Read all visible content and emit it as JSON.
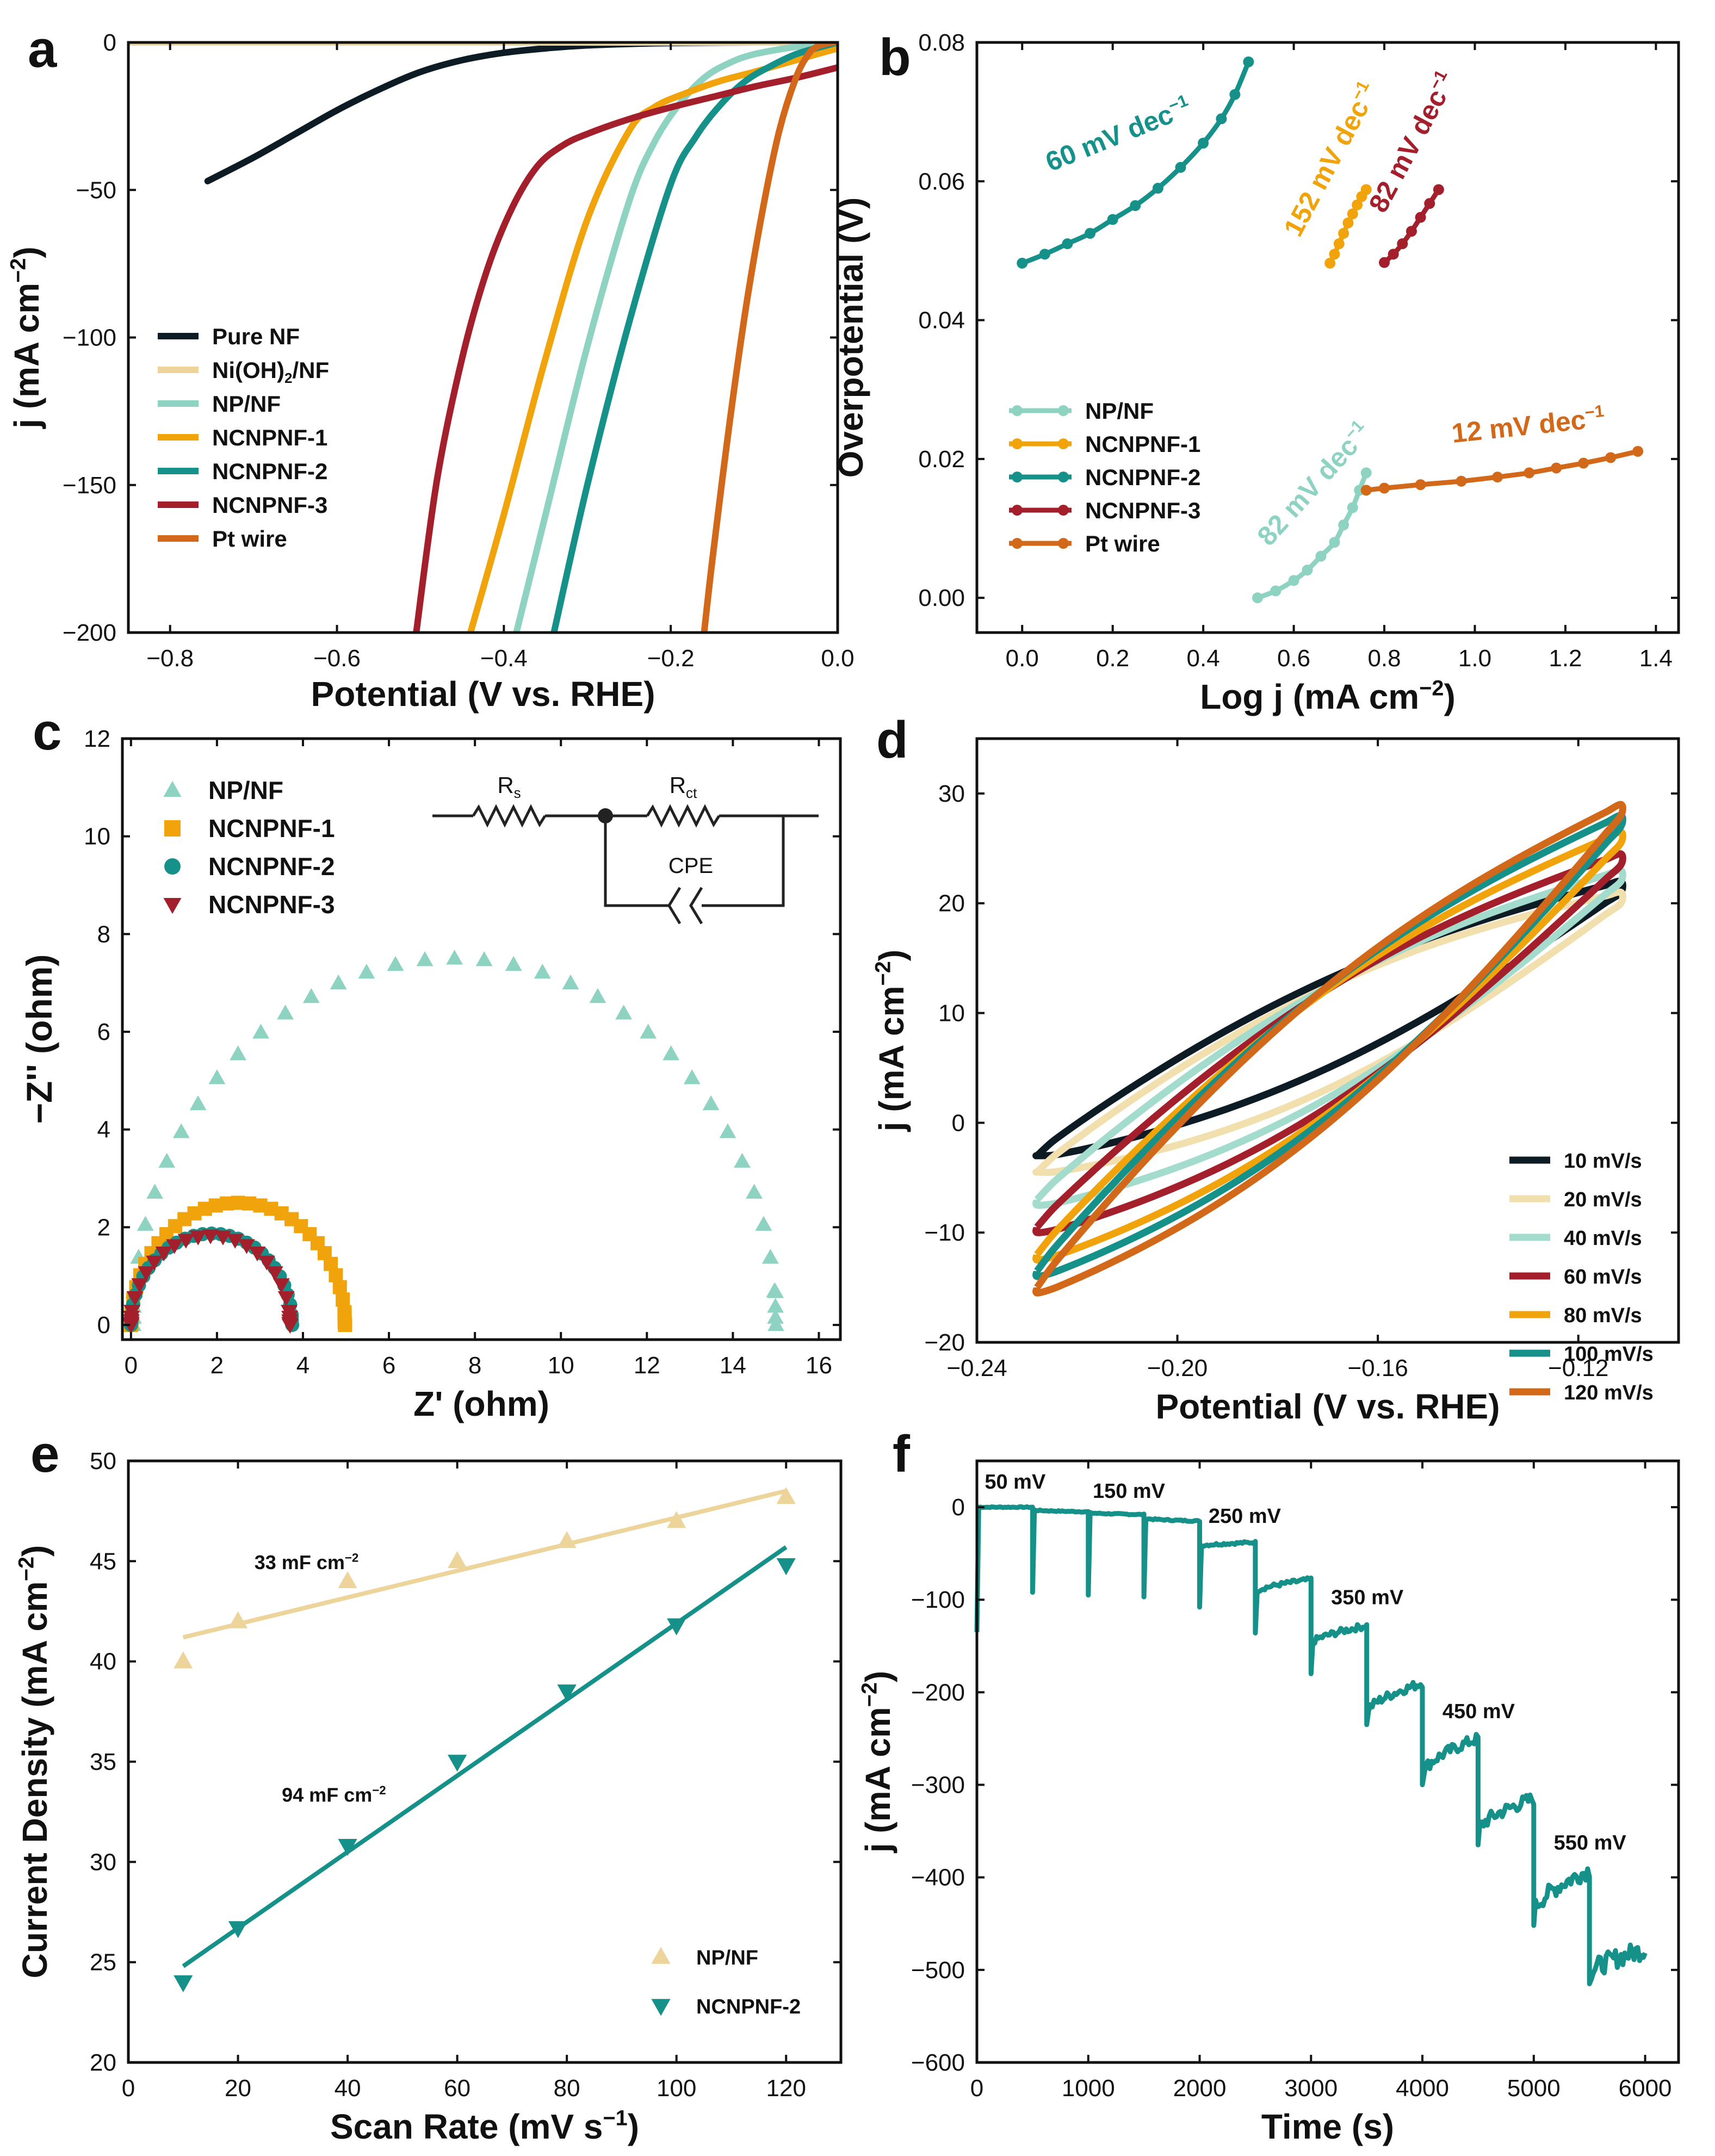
{
  "colors": {
    "pure_nf": "#0d1b24",
    "nioh": "#ecd49b",
    "np": "#8ed3c1",
    "ncnpnf1": "#f0a30a",
    "ncnpnf2": "#16918a",
    "ncnpnf3": "#a31f2c",
    "pt": "#d2691a",
    "ten_mv": "#0d1b24",
    "twenty_mv": "#f1dfae",
    "forty_mv": "#a3dccc"
  },
  "chart_data": [
    {
      "id": "a",
      "panel_label": "a",
      "type": "line",
      "xlabel": "Potential (V vs. RHE)",
      "ylabel_main": "j (mA cm",
      "ylabel_sup": "−2",
      "ylabel_end": ")",
      "xlim": [
        -0.85,
        0.0
      ],
      "ylim": [
        -200,
        0
      ],
      "xticks": [
        -0.8,
        -0.6,
        -0.4,
        -0.2,
        0.0
      ],
      "xtick_labels": [
        "−0.8",
        "−0.6",
        "−0.4",
        "−0.2",
        "0.0"
      ],
      "yticks": [
        0,
        -50,
        -100,
        -150,
        -200
      ],
      "ytick_labels": [
        "0",
        "−50",
        "−100",
        "−150",
        "−200"
      ],
      "legend": [
        {
          "main": "Pure NF",
          "sub": "",
          "tail": ""
        },
        {
          "main": "Ni(OH)",
          "sub": "2",
          "tail": "/NF"
        },
        {
          "main": "NP/NF",
          "sub": "",
          "tail": ""
        },
        {
          "main": "NCNPNF-1",
          "sub": "",
          "tail": ""
        },
        {
          "main": "NCNPNF-2",
          "sub": "",
          "tail": ""
        },
        {
          "main": "NCNPNF-3",
          "sub": "",
          "tail": ""
        },
        {
          "main": "Pt wire",
          "sub": "",
          "tail": ""
        }
      ],
      "series": [
        {
          "name": "Pure NF",
          "color_key": "pure_nf",
          "x": [
            -0.755,
            -0.7,
            -0.65,
            -0.6,
            -0.55,
            -0.5,
            -0.45,
            -0.4,
            -0.35,
            -0.3,
            -0.25,
            -0.2,
            -0.1,
            0.0
          ],
          "y": [
            -47,
            -39,
            -31,
            -23,
            -16,
            -10,
            -6,
            -3.5,
            -2,
            -1,
            -0.5,
            -0.2,
            0,
            0
          ]
        },
        {
          "name": "Ni(OH)2/NF",
          "color_key": "nioh",
          "x": [
            -0.85,
            0.0
          ],
          "y": [
            0,
            0
          ]
        },
        {
          "name": "NP/NF",
          "color_key": "np",
          "x": [
            -0.385,
            -0.35,
            -0.3,
            -0.25,
            -0.22,
            -0.19,
            -0.16,
            -0.13,
            -0.1,
            -0.05,
            0.0
          ],
          "y": [
            -200,
            -160,
            -103,
            -54,
            -34,
            -21,
            -12,
            -7,
            -4,
            -1.5,
            0
          ]
        },
        {
          "name": "NCNPNF-1",
          "color_key": "ncnpnf1",
          "x": [
            -0.44,
            -0.4,
            -0.35,
            -0.3,
            -0.25,
            -0.22,
            -0.18,
            -0.14,
            -0.1,
            -0.05,
            0.0
          ],
          "y": [
            -200,
            -160,
            -107,
            -60,
            -30,
            -22,
            -17,
            -13,
            -10,
            -6,
            -2
          ]
        },
        {
          "name": "NCNPNF-2",
          "color_key": "ncnpnf2",
          "x": [
            -0.34,
            -0.3,
            -0.25,
            -0.2,
            -0.17,
            -0.14,
            -0.11,
            -0.08,
            -0.05,
            -0.02,
            0.0
          ],
          "y": [
            -200,
            -150,
            -95,
            -48,
            -32,
            -21,
            -13,
            -8,
            -4,
            -1.5,
            0
          ]
        },
        {
          "name": "NCNPNF-3",
          "color_key": "ncnpnf3",
          "x": [
            -0.505,
            -0.48,
            -0.45,
            -0.42,
            -0.39,
            -0.36,
            -0.33,
            -0.3,
            -0.25,
            -0.2,
            -0.15,
            -0.1,
            -0.05,
            0.0
          ],
          "y": [
            -200,
            -148,
            -107,
            -77,
            -56,
            -42,
            -35,
            -31,
            -26,
            -22,
            -18.5,
            -15,
            -12,
            -8.5
          ]
        },
        {
          "name": "Pt wire",
          "color_key": "pt",
          "x": [
            -0.16,
            -0.15,
            -0.13,
            -0.11,
            -0.09,
            -0.07,
            -0.05,
            -0.035,
            -0.025,
            -0.015,
            -0.005,
            0.0
          ],
          "y": [
            -200,
            -175,
            -130,
            -90,
            -57,
            -30,
            -12,
            -4,
            -1.5,
            -0.5,
            0,
            0
          ]
        }
      ]
    },
    {
      "id": "b",
      "panel_label": "b",
      "type": "line",
      "xlabel_main": "Log j (mA cm",
      "xlabel_sup": "−2",
      "xlabel_end": ")",
      "ylabel": "Overpotential (V)",
      "xlim": [
        -0.1,
        1.45
      ],
      "ylim": [
        -0.005,
        0.08
      ],
      "xticks": [
        0.0,
        0.2,
        0.4,
        0.6,
        0.8,
        1.0,
        1.2,
        1.4
      ],
      "xtick_labels": [
        "0.0",
        "0.2",
        "0.4",
        "0.6",
        "0.8",
        "1.0",
        "1.2",
        "1.4"
      ],
      "yticks": [
        0.0,
        0.02,
        0.04,
        0.06,
        0.08
      ],
      "ytick_labels": [
        "0.00",
        "0.02",
        "0.04",
        "0.06",
        "0.08"
      ],
      "legend": [
        "NP/NF",
        "NCNPNF-1",
        "NCNPNF-2",
        "NCNPNF-3",
        "Pt wire"
      ],
      "series": [
        {
          "name": "NP/NF",
          "color_key": "np",
          "x": [
            0.52,
            0.56,
            0.6,
            0.63,
            0.66,
            0.69,
            0.71,
            0.73,
            0.745,
            0.76
          ],
          "y": [
            0.0,
            0.001,
            0.0025,
            0.004,
            0.006,
            0.008,
            0.0105,
            0.013,
            0.0155,
            0.018
          ]
        },
        {
          "name": "NCNPNF-1",
          "color_key": "ncnpnf1",
          "x": [
            0.68,
            0.69,
            0.7,
            0.71,
            0.72,
            0.73,
            0.74,
            0.75,
            0.76
          ],
          "y": [
            0.0482,
            0.0495,
            0.051,
            0.0525,
            0.054,
            0.0553,
            0.0566,
            0.0578,
            0.0588
          ]
        },
        {
          "name": "NCNPNF-2",
          "color_key": "ncnpnf2",
          "x": [
            0.0,
            0.05,
            0.1,
            0.15,
            0.2,
            0.25,
            0.3,
            0.35,
            0.4,
            0.44,
            0.47,
            0.5
          ],
          "y": [
            0.0482,
            0.0495,
            0.051,
            0.0525,
            0.0545,
            0.0565,
            0.059,
            0.062,
            0.0655,
            0.069,
            0.0725,
            0.0772
          ]
        },
        {
          "name": "NCNPNF-3",
          "color_key": "ncnpnf3",
          "x": [
            0.8,
            0.82,
            0.84,
            0.86,
            0.88,
            0.9,
            0.92
          ],
          "y": [
            0.0483,
            0.0495,
            0.051,
            0.0528,
            0.0548,
            0.0568,
            0.0588
          ]
        },
        {
          "name": "Pt wire",
          "color_key": "pt",
          "x": [
            0.76,
            0.8,
            0.88,
            0.97,
            1.05,
            1.12,
            1.18,
            1.24,
            1.3,
            1.36
          ],
          "y": [
            0.0155,
            0.0158,
            0.0163,
            0.0168,
            0.0174,
            0.018,
            0.0187,
            0.0194,
            0.0202,
            0.0211
          ]
        }
      ],
      "annotations": [
        {
          "text": "60 mV dec",
          "sup": "−1",
          "x": 0.22,
          "y": 0.0655,
          "angle": -22,
          "color_key": "ncnpnf2"
        },
        {
          "text": "152 mV dec",
          "sup": "−1",
          "x": 0.7,
          "y": 0.0625,
          "angle": -62,
          "color_key": "ncnpnf1"
        },
        {
          "text": "82 mV dec",
          "sup": "−1",
          "x": 0.88,
          "y": 0.065,
          "angle": -62,
          "color_key": "ncnpnf3"
        },
        {
          "text": "82 mV dec",
          "sup": "−1",
          "x": 0.66,
          "y": 0.0155,
          "angle": -48,
          "color_key": "np"
        },
        {
          "text": "12 mV dec",
          "sup": "−1",
          "x": 1.12,
          "y": 0.0235,
          "angle": -6,
          "color_key": "pt"
        }
      ]
    },
    {
      "id": "c",
      "panel_label": "c",
      "type": "scatter",
      "xlabel": "Z' (ohm)",
      "ylabel": "−Z'' (ohm)",
      "xlim": [
        -0.2,
        16.5
      ],
      "ylim": [
        -0.3,
        12
      ],
      "xticks": [
        0,
        2,
        4,
        6,
        8,
        10,
        12,
        14,
        16
      ],
      "xtick_labels": [
        "0",
        "2",
        "4",
        "6",
        "8",
        "10",
        "12",
        "14",
        "16"
      ],
      "yticks": [
        0,
        2,
        4,
        6,
        8,
        10,
        12
      ],
      "ytick_labels": [
        "0",
        "2",
        "4",
        "6",
        "8",
        "10",
        "12"
      ],
      "legend": [
        "NP/NF",
        "NCNPNF-1",
        "NCNPNF-2",
        "NCNPNF-3"
      ],
      "circuit_labels": {
        "rs_main": "R",
        "rs_sub": "s",
        "rct_main": "R",
        "rct_sub": "ct",
        "cpe": "CPE"
      },
      "series": [
        {
          "name": "NP/NF",
          "color_key": "np",
          "marker": "triangle-up",
          "semicircle": {
            "r0": 0.05,
            "r1": 15.0,
            "peak": 7.5,
            "n": 34
          }
        },
        {
          "name": "NCNPNF-1",
          "color_key": "ncnpnf1",
          "marker": "square",
          "semicircle": {
            "r0": 0.0,
            "r1": 4.98,
            "peak": 2.5,
            "n": 30
          }
        },
        {
          "name": "NCNPNF-2",
          "color_key": "ncnpnf2",
          "marker": "circle",
          "semicircle": {
            "r0": 0.0,
            "r1": 3.75,
            "peak": 1.87,
            "n": 28
          }
        },
        {
          "name": "NCNPNF-3",
          "color_key": "ncnpnf3",
          "marker": "triangle-down",
          "semicircle": {
            "r0": 0.0,
            "r1": 3.7,
            "peak": 1.83,
            "n": 20
          }
        }
      ]
    },
    {
      "id": "d",
      "panel_label": "d",
      "type": "line",
      "xlabel": "Potential (V vs. RHE)",
      "ylabel_main": "j (mA cm",
      "ylabel_sup": "−2",
      "ylabel_end": ")",
      "xlim": [
        -0.24,
        -0.1
      ],
      "ylim": [
        -20,
        35
      ],
      "xticks": [
        -0.24,
        -0.2,
        -0.16,
        -0.12
      ],
      "xtick_labels": [
        "−0.24",
        "−0.20",
        "−0.16",
        "−0.12"
      ],
      "yticks": [
        -20,
        -10,
        0,
        10,
        20,
        30
      ],
      "ytick_labels": [
        "−20",
        "−10",
        "0",
        "10",
        "20",
        "30"
      ],
      "legend": [
        "10 mV/s",
        "20 mV/s",
        "40 mV/s",
        "60 mV/s",
        "80 mV/s",
        "100 mV/s",
        "120 mV/s"
      ],
      "series": [
        {
          "name": "10 mV/s",
          "color_key": "ten_mv",
          "x_min": -0.228,
          "x_max": -0.1115,
          "top_left": -3,
          "top_right": 22,
          "bot_left": -3,
          "bot_right": 21,
          "bulge": 5.0
        },
        {
          "name": "20 mV/s",
          "color_key": "twenty_mv",
          "x_min": -0.228,
          "x_max": -0.1115,
          "top_left": -4.5,
          "top_right": 21,
          "bot_left": -4.5,
          "bot_right": 20,
          "bulge": 6.0
        },
        {
          "name": "40 mV/s",
          "color_key": "forty_mv",
          "x_min": -0.228,
          "x_max": -0.1115,
          "top_left": -7,
          "top_right": 23,
          "bot_left": -7.5,
          "bot_right": 22,
          "bulge": 6.5
        },
        {
          "name": "60 mV/s",
          "color_key": "ncnpnf3",
          "x_min": -0.228,
          "x_max": -0.1115,
          "top_left": -9.5,
          "top_right": 24.5,
          "bot_left": -10,
          "bot_right": 23.5,
          "bulge": 7.0
        },
        {
          "name": "80 mV/s",
          "color_key": "ncnpnf1",
          "x_min": -0.228,
          "x_max": -0.1115,
          "top_left": -12,
          "top_right": 26.5,
          "bot_left": -12.5,
          "bot_right": 25.5,
          "bulge": 7.5
        },
        {
          "name": "100 mV/s",
          "color_key": "ncnpnf2",
          "x_min": -0.228,
          "x_max": -0.1115,
          "top_left": -13.5,
          "top_right": 28,
          "bot_left": -14,
          "bot_right": 27,
          "bulge": 8.0
        },
        {
          "name": "120 mV/s",
          "color_key": "pt",
          "x_min": -0.228,
          "x_max": -0.1115,
          "top_left": -15,
          "top_right": 29,
          "bot_left": -15.5,
          "bot_right": 28,
          "bulge": 8.5
        }
      ]
    },
    {
      "id": "e",
      "panel_label": "e",
      "type": "scatter",
      "xlabel_main": "Scan Rate (mV s",
      "xlabel_sup": "−1",
      "xlabel_end": ")",
      "ylabel_main": "Current Density (mA cm",
      "ylabel_sup": "−2",
      "ylabel_end": ")",
      "xlim": [
        0,
        130
      ],
      "ylim": [
        20,
        50
      ],
      "xticks": [
        0,
        20,
        40,
        60,
        80,
        100,
        120
      ],
      "xtick_labels": [
        "0",
        "20",
        "40",
        "60",
        "80",
        "100",
        "120"
      ],
      "yticks": [
        20,
        25,
        30,
        35,
        40,
        45,
        50
      ],
      "ytick_labels": [
        "20",
        "25",
        "30",
        "35",
        "40",
        "45",
        "50"
      ],
      "legend": [
        "NP/NF",
        "NCNPNF-2"
      ],
      "series": [
        {
          "name": "NP/NF",
          "color_key": "nioh",
          "marker": "triangle-up",
          "x": [
            10,
            20,
            40,
            60,
            80,
            100,
            120
          ],
          "y": [
            40,
            42,
            44,
            45,
            46,
            47,
            48.2
          ],
          "fit": [
            [
              10,
              41.2
            ],
            [
              120,
              48.5
            ]
          ]
        },
        {
          "name": "NCNPNF-2",
          "color_key": "ncnpnf2",
          "marker": "triangle-down",
          "x": [
            10,
            20,
            40,
            60,
            80,
            100,
            120
          ],
          "y": [
            24,
            26.7,
            30.8,
            35,
            38.5,
            41.8,
            44.8
          ],
          "fit": [
            [
              10,
              24.8
            ],
            [
              120,
              45.7
            ]
          ]
        }
      ],
      "annotations": [
        {
          "text": "33 mF cm",
          "sup": "−2",
          "x": 23,
          "y": 44.6
        },
        {
          "text": "94 mF cm",
          "sup": "−2",
          "x": 28,
          "y": 33.0
        }
      ]
    },
    {
      "id": "f",
      "panel_label": "f",
      "type": "line",
      "xlabel": "Time (s)",
      "ylabel_main": "j (mA cm",
      "ylabel_sup": "−2",
      "ylabel_end": ")",
      "xlim": [
        0,
        6300
      ],
      "ylim": [
        -600,
        50
      ],
      "xticks": [
        0,
        1000,
        2000,
        3000,
        4000,
        5000,
        6000
      ],
      "xtick_labels": [
        "0",
        "1000",
        "2000",
        "3000",
        "4000",
        "5000",
        "6000"
      ],
      "yticks": [
        0,
        -100,
        -200,
        -300,
        -400,
        -500,
        -600
      ],
      "ytick_labels": [
        "0",
        "−100",
        "−200",
        "−300",
        "−400",
        "−500",
        "−600"
      ],
      "steps": [
        {
          "t0": 0,
          "t1": 500,
          "start": 0,
          "end": 0,
          "spike": -135
        },
        {
          "t0": 500,
          "t1": 1000,
          "start": -3,
          "end": -5,
          "spike": -92
        },
        {
          "t0": 1000,
          "t1": 1500,
          "start": -6,
          "end": -8,
          "spike": -95
        },
        {
          "t0": 1500,
          "t1": 2000,
          "start": -12,
          "end": -15,
          "spike": -97
        },
        {
          "t0": 2000,
          "t1": 2500,
          "start": -42,
          "end": -38,
          "spike": -108
        },
        {
          "t0": 2500,
          "t1": 3000,
          "start": -92,
          "end": -78,
          "spike": -136
        },
        {
          "t0": 3000,
          "t1": 3500,
          "start": -148,
          "end": -128,
          "spike": -180
        },
        {
          "t0": 3500,
          "t1": 4000,
          "start": -222,
          "end": -190,
          "spike": -235
        },
        {
          "t0": 4000,
          "t1": 4500,
          "start": -288,
          "end": -250,
          "spike": -300
        },
        {
          "t0": 4500,
          "t1": 5000,
          "start": -350,
          "end": -315,
          "spike": -365
        },
        {
          "t0": 5000,
          "t1": 5500,
          "start": -438,
          "end": -392,
          "spike": -452
        },
        {
          "t0": 5500,
          "t1": 6000,
          "start": -505,
          "end": -478,
          "spike": -515
        }
      ],
      "annotations": [
        {
          "text": "50 mV",
          "x": 70,
          "y": 20
        },
        {
          "text": "150 mV",
          "x": 1040,
          "y": 10
        },
        {
          "text": "250 mV",
          "x": 2080,
          "y": -17
        },
        {
          "text": "350 mV",
          "x": 3180,
          "y": -105
        },
        {
          "text": "450 mV",
          "x": 4180,
          "y": -228
        },
        {
          "text": "550 mV",
          "x": 5180,
          "y": -370
        }
      ]
    }
  ]
}
